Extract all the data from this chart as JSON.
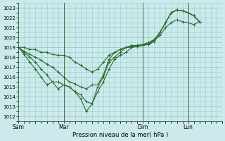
{
  "background_color": "#cceaec",
  "grid_color": "#99cccc",
  "line_color": "#2d6a2d",
  "xlabel": "Pression niveau de la mer( hPa )",
  "ylim": [
    1011.5,
    1023.5
  ],
  "yticks": [
    1012,
    1013,
    1014,
    1015,
    1016,
    1017,
    1018,
    1019,
    1020,
    1021,
    1022,
    1023
  ],
  "day_labels": [
    "Sam",
    "Mar",
    "Dim",
    "Lun"
  ],
  "day_positions": [
    0,
    8,
    22,
    30
  ],
  "vline_positions": [
    0,
    8,
    22,
    30
  ],
  "xlim": [
    0,
    36
  ],
  "series": [
    [
      1019.0,
      1018.6,
      1018.3,
      1018.0,
      1017.7,
      1017.3,
      1017.0,
      1016.5,
      1016.0,
      1015.5,
      1015.3,
      1015.0,
      1014.8,
      1015.2,
      1015.2,
      1016.2,
      1017.8,
      1018.5,
      1018.8,
      1019.0,
      1019.1,
      1019.2,
      1019.3,
      1019.5,
      1019.8,
      1020.5,
      1021.5,
      1022.5,
      1022.8,
      1022.7,
      1022.5,
      1022.2,
      1021.6
    ],
    [
      1019.0,
      1018.5,
      1018.0,
      1017.5,
      1016.8,
      1016.2,
      1015.5,
      1014.8,
      1015.2,
      1015.0,
      1014.5,
      1014.2,
      1013.5,
      1013.3,
      1014.5,
      1015.5,
      1016.8,
      1017.8,
      1018.2,
      1018.5,
      1019.0,
      1019.1,
      1019.2,
      1019.3,
      1019.6,
      1020.5,
      1021.5,
      1022.5,
      1022.8,
      1022.7,
      1022.5,
      1022.2,
      1021.6
    ],
    [
      1019.0,
      1018.3,
      1017.5,
      1016.8,
      1016.0,
      1015.2,
      1015.5,
      1015.5,
      1015.2,
      1015.0,
      1014.5,
      1013.8,
      1012.5,
      1013.3,
      1015.0,
      1016.0,
      1017.5,
      1018.0,
      1018.5,
      1019.0,
      1019.0,
      1019.1,
      1019.2,
      1019.3,
      1019.6,
      1020.5,
      1021.5,
      1022.5,
      1022.8,
      1022.7,
      1022.5,
      1022.2,
      1021.6
    ],
    [
      1019.0,
      1019.0,
      1018.8,
      1018.8,
      1018.5,
      1018.5,
      1018.3,
      1018.2,
      1018.2,
      1018.0,
      1017.5,
      1017.2,
      1016.8,
      1016.5,
      1016.8,
      1017.5,
      1018.2,
      1018.5,
      1018.8,
      1019.0,
      1019.2,
      1019.2,
      1019.3,
      1019.4,
      1019.7,
      1020.2,
      1021.0,
      1021.5,
      1021.8,
      1021.6,
      1021.5,
      1021.3,
      1021.6
    ]
  ]
}
